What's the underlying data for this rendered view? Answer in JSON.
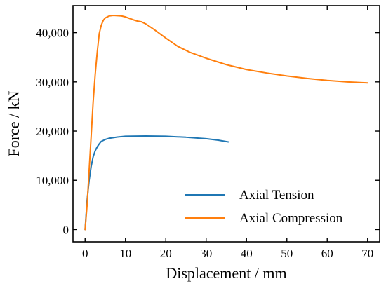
{
  "chart_data": {
    "type": "line",
    "title": "",
    "xlabel": "Displacement / mm",
    "ylabel": "Force / kN",
    "xlim": [
      -3,
      73
    ],
    "ylim": [
      -2500,
      45500
    ],
    "xticks": [
      0,
      10,
      20,
      30,
      40,
      50,
      60,
      70
    ],
    "xtick_labels": [
      "0",
      "10",
      "20",
      "30",
      "40",
      "50",
      "60",
      "70"
    ],
    "yticks": [
      0,
      10000,
      20000,
      30000,
      40000
    ],
    "ytick_labels": [
      "0",
      "10,000",
      "20,000",
      "30,000",
      "40,000"
    ],
    "grid": false,
    "legend_position": "bottom-right",
    "series": [
      {
        "name": "Axial Tension",
        "color": "#1f77b4",
        "x": [
          0,
          0.5,
          1,
          1.5,
          2,
          2.5,
          3,
          3.5,
          4,
          5,
          6,
          8,
          10,
          15,
          20,
          25,
          30,
          33,
          35.5
        ],
        "y": [
          0,
          6000,
          10000,
          12800,
          14800,
          16000,
          16800,
          17400,
          17900,
          18300,
          18550,
          18800,
          18950,
          19000,
          18950,
          18750,
          18450,
          18150,
          17800
        ]
      },
      {
        "name": "Axial Compression",
        "color": "#ff7f0e",
        "x": [
          0,
          0.5,
          1,
          1.5,
          2,
          2.5,
          3,
          3.5,
          4,
          4.5,
          5,
          6,
          7,
          8,
          9,
          10,
          11,
          12,
          13,
          14,
          15,
          17,
          20,
          23,
          26,
          30,
          35,
          40,
          45,
          50,
          55,
          60,
          65,
          70
        ],
        "y": [
          0,
          5000,
          12000,
          19000,
          26000,
          31500,
          36000,
          39800,
          41500,
          42500,
          43000,
          43400,
          43500,
          43450,
          43400,
          43200,
          42900,
          42600,
          42350,
          42200,
          41800,
          40700,
          38900,
          37200,
          36000,
          34800,
          33500,
          32500,
          31800,
          31200,
          30700,
          30300,
          30000,
          29800
        ]
      }
    ]
  }
}
